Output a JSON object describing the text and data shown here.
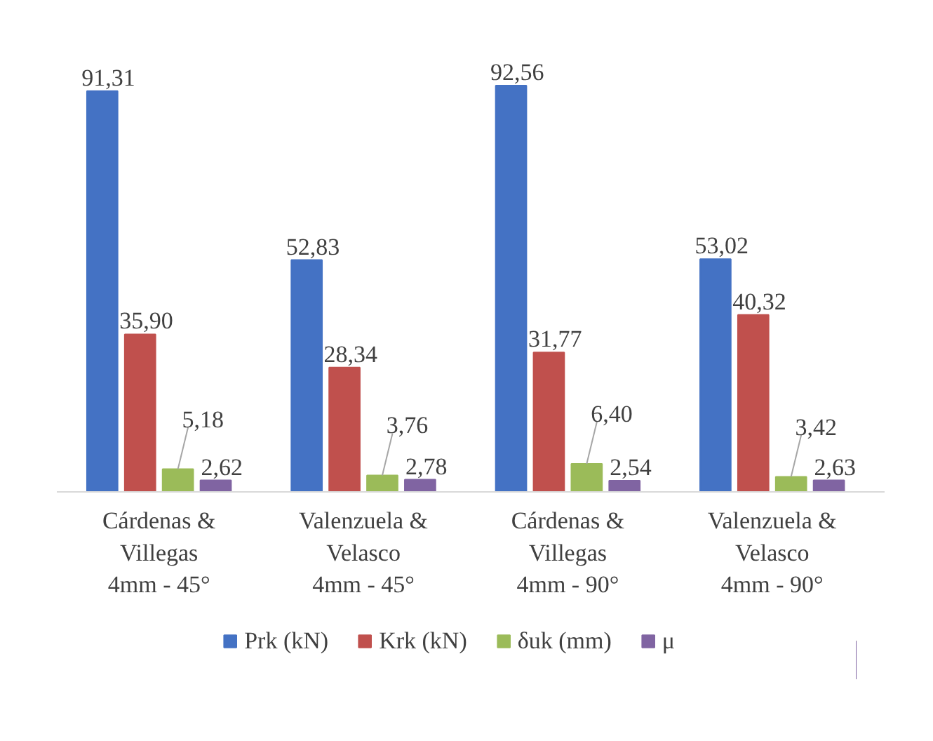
{
  "chart_data": {
    "type": "bar",
    "categories": [
      "Cárdenas &\nVillegas\n4mm - 45°",
      "Valenzuela &\nVelasco\n4mm - 45°",
      "Cárdenas &\nVillegas\n4mm - 90°",
      "Valenzuela &\nVelasco\n4mm - 90°"
    ],
    "series": [
      {
        "name": "Prk (kN)",
        "color": "#4472c4",
        "values": [
          91.31,
          52.83,
          92.56,
          53.02
        ],
        "value_labels": [
          "91,31",
          "52,83",
          "92,56",
          "53,02"
        ]
      },
      {
        "name": "Krk (kN)",
        "color": "#c0504d",
        "values": [
          35.9,
          28.34,
          31.77,
          40.32
        ],
        "value_labels": [
          "35,90",
          "28,34",
          "31,77",
          "40,32"
        ]
      },
      {
        "name": "δuk (mm)",
        "color": "#9bbb59",
        "values": [
          5.18,
          3.76,
          6.4,
          3.42
        ],
        "value_labels": [
          "5,18",
          "3,76",
          "6,40",
          "3,42"
        ]
      },
      {
        "name": "μ",
        "color": "#8064a2",
        "values": [
          2.62,
          2.78,
          2.54,
          2.63
        ],
        "value_labels": [
          "2,62",
          "2,78",
          "2,54",
          "2,63"
        ]
      }
    ],
    "grid": false,
    "legend": "bottom"
  }
}
